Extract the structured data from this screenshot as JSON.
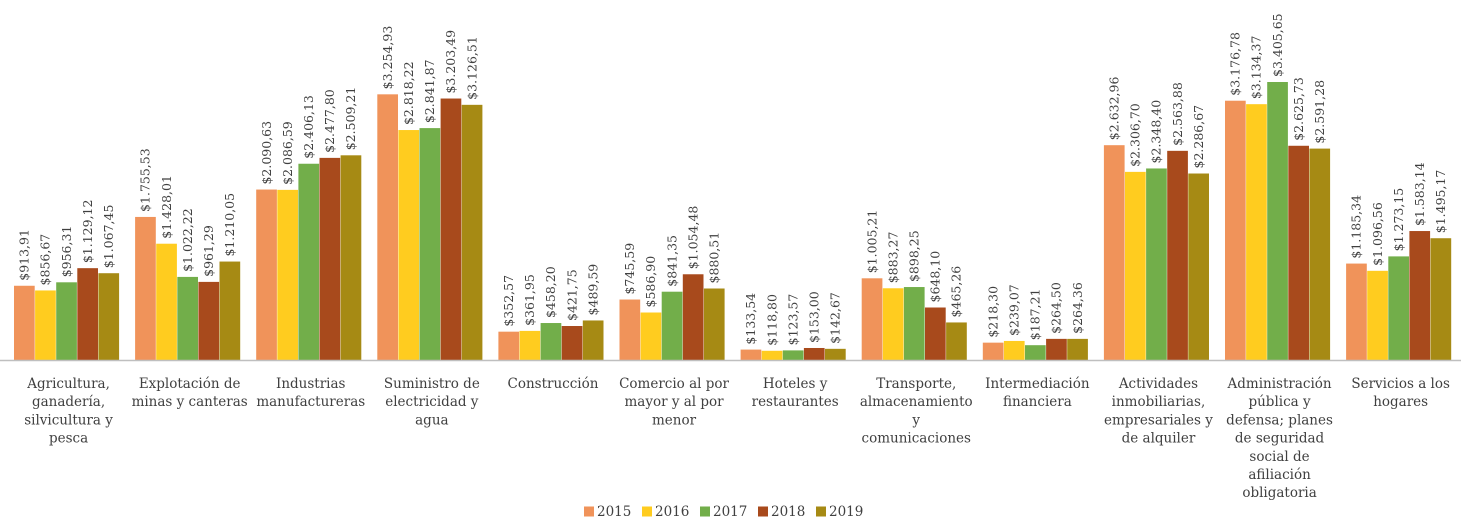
{
  "chart_data": {
    "type": "bar",
    "title": "",
    "xlabel": "",
    "ylabel": "",
    "ylim": [
      0,
      3600
    ],
    "grid": false,
    "legend_position": "bottom",
    "categories": [
      "Agricultura, ganadería, silvicultura y pesca",
      "Explotación de minas y canteras",
      "Industrias manufactureras",
      "Suministro de electricidad y agua",
      "Construcción",
      "Comercio al por mayor y al por menor",
      "Hoteles y restaurantes",
      "Transporte, almacenamiento y comunicaciones",
      "Intermediación financiera",
      "Actividades inmobiliarias, empresariales y de alquiler",
      "Administración pública y defensa; planes de seguridad social de afiliación obligatoria",
      "Servicios a los hogares"
    ],
    "category_lines": [
      [
        "Agricultura,",
        "ganadería,",
        "silvicultura y",
        "pesca"
      ],
      [
        "Explotación de",
        "minas y canteras"
      ],
      [
        "Industrias",
        "manufactureras"
      ],
      [
        "Suministro de",
        "electricidad y",
        "agua"
      ],
      [
        "Construcción"
      ],
      [
        "Comercio al por",
        "mayor y al por",
        "menor"
      ],
      [
        "Hoteles y",
        "restaurantes"
      ],
      [
        "Transporte,",
        "almacenamiento",
        "y",
        "comunicaciones"
      ],
      [
        "Intermediación",
        "financiera"
      ],
      [
        "Actividades",
        "inmobiliarias,",
        "empresariales y",
        "de alquiler"
      ],
      [
        "Administración",
        "pública y",
        "defensa; planes",
        "de seguridad",
        "social de",
        "afiliación",
        "obligatoria"
      ],
      [
        "Servicios a los",
        "hogares"
      ]
    ],
    "series": [
      {
        "name": "2015",
        "color": "#f0935a",
        "values": [
          913.91,
          1755.53,
          2090.63,
          3254.93,
          352.57,
          745.59,
          133.54,
          1005.21,
          218.3,
          2632.96,
          3176.78,
          1185.34
        ],
        "labels": [
          "$913,91",
          "$1.755,53",
          "$2.090,63",
          "$3.254,93",
          "$352,57",
          "$745,59",
          "$133,54",
          "$1.005,21",
          "$218,30",
          "$2.632,96",
          "$3.176,78",
          "$1.185,34"
        ]
      },
      {
        "name": "2016",
        "color": "#ffcc1f",
        "values": [
          856.67,
          1428.01,
          2086.59,
          2818.22,
          361.95,
          586.9,
          118.8,
          883.27,
          239.07,
          2306.7,
          3134.37,
          1096.56
        ],
        "labels": [
          "$856,67",
          "$1.428,01",
          "$2.086,59",
          "$2.818,22",
          "$361,95",
          "$586,90",
          "$118,80",
          "$883,27",
          "$239,07",
          "$2.306,70",
          "$3.134,37",
          "$1.096,56"
        ]
      },
      {
        "name": "2017",
        "color": "#72ae4a",
        "values": [
          956.31,
          1022.22,
          2406.13,
          2841.87,
          458.2,
          841.35,
          123.57,
          898.25,
          187.21,
          2348.4,
          3405.65,
          1273.15
        ],
        "labels": [
          "$956,31",
          "$1.022,22",
          "$2.406,13",
          "$2.841,87",
          "$458,20",
          "$841,35",
          "$123,57",
          "$898,25",
          "$187,21",
          "$2.348,40",
          "$3.405,65",
          "$1.273,15"
        ]
      },
      {
        "name": "2018",
        "color": "#a84a1c",
        "values": [
          1129.12,
          961.29,
          2477.8,
          3203.49,
          421.75,
          1054.48,
          153.0,
          648.1,
          264.5,
          2563.88,
          2625.73,
          1583.14
        ],
        "labels": [
          "$1.129,12",
          "$961,29",
          "$2.477,80",
          "$3.203,49",
          "$421,75",
          "$1.054,48",
          "$153,00",
          "$648,10",
          "$264,50",
          "$2.563,88",
          "$2.625,73",
          "$1.583,14"
        ]
      },
      {
        "name": "2019",
        "color": "#a68a14",
        "values": [
          1067.45,
          1210.05,
          2509.21,
          3126.51,
          489.59,
          880.51,
          142.67,
          465.26,
          264.36,
          2286.67,
          2591.28,
          1495.17
        ],
        "labels": [
          "$1.067,45",
          "$1.210,05",
          "$2.509,21",
          "$3.126,51",
          "$489,59",
          "$880,51",
          "$142,67",
          "$465,26",
          "$264,36",
          "$2.286,67",
          "$2.591,28",
          "$1.495,17"
        ]
      }
    ]
  }
}
